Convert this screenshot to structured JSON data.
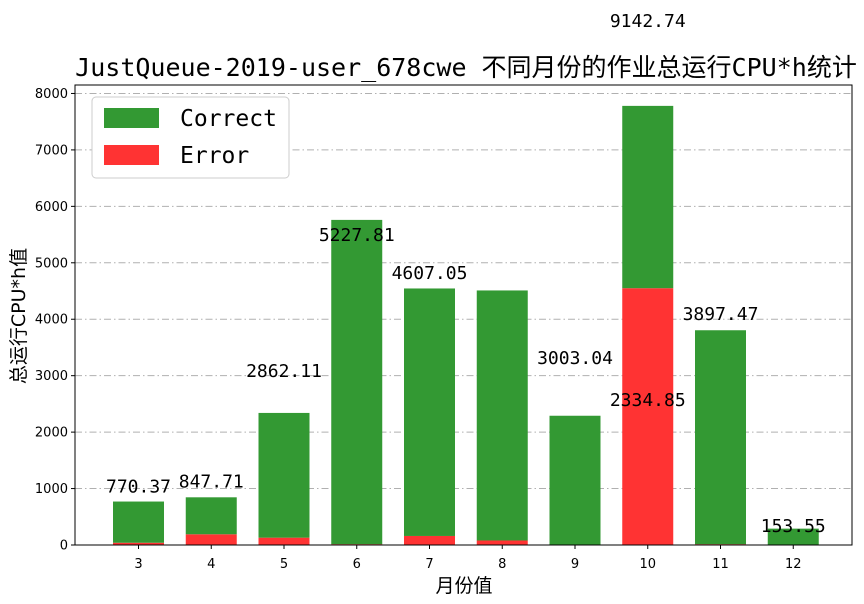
{
  "chart_data": {
    "type": "bar",
    "stacked": true,
    "title": "JustQueue-2019-user_678cwe 不同月份的作业总运行CPU*h统计",
    "xlabel": "月份值",
    "ylabel": "总运行CPU*h值",
    "categories": [
      "3",
      "4",
      "5",
      "6",
      "7",
      "8",
      "9",
      "10",
      "11",
      "12"
    ],
    "series": [
      {
        "name": "Error",
        "color": "#ff3333",
        "values": [
          40,
          190,
          130,
          15,
          160,
          80,
          0,
          4550,
          15,
          0
        ]
      },
      {
        "name": "Correct",
        "color": "#339933",
        "values": [
          730,
          655,
          2210,
          5745,
          4385,
          4430,
          2290,
          3230,
          3790,
          290
        ]
      }
    ],
    "data_labels": [
      {
        "category": "3",
        "text": "770.37",
        "y": 930
      },
      {
        "category": "4",
        "text": "847.71",
        "y": 1020
      },
      {
        "category": "5",
        "text": "2862.11",
        "y": 2980
      },
      {
        "category": "6",
        "text": "5227.81",
        "y": 5390
      },
      {
        "category": "7",
        "text": "4607.05",
        "y": 4710
      },
      {
        "category": "9",
        "text": "3003.04",
        "y": 3210
      },
      {
        "category": "10",
        "text": "2334.85",
        "y": 2460
      },
      {
        "category": "10",
        "text": "9142.74",
        "y": 9180
      },
      {
        "category": "11",
        "text": "3897.47",
        "y": 3990
      },
      {
        "category": "12",
        "text": "153.55",
        "y": 230
      }
    ],
    "yticks": [
      0,
      1000,
      2000,
      3000,
      4000,
      5000,
      6000,
      7000,
      8000
    ],
    "ylim": [
      0,
      8150
    ],
    "grid": "horizontal dash-dot",
    "legend": {
      "position": "top-left",
      "entries": [
        "Correct",
        "Error"
      ]
    }
  }
}
